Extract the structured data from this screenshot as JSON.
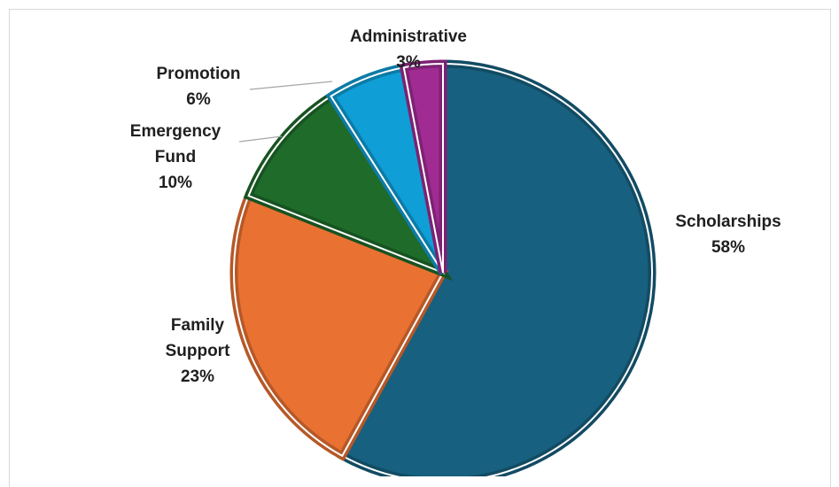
{
  "chart_data": {
    "type": "pie",
    "title": "",
    "slices": [
      {
        "name": "Scholarships",
        "label_lines": [
          "Scholarships"
        ],
        "value": 58,
        "percent_label": "58%",
        "color": "#17607f"
      },
      {
        "name": "Family Support",
        "label_lines": [
          "Family",
          "Support"
        ],
        "value": 23,
        "percent_label": "23%",
        "color": "#e97132"
      },
      {
        "name": "Emergency Fund",
        "label_lines": [
          "Emergency",
          "Fund"
        ],
        "value": 10,
        "percent_label": "10%",
        "color": "#1e6b2a"
      },
      {
        "name": "Promotion",
        "label_lines": [
          "Promotion"
        ],
        "value": 6,
        "percent_label": "6%",
        "color": "#0f9ed5"
      },
      {
        "name": "Administrative",
        "label_lines": [
          "Administrative"
        ],
        "value": 3,
        "percent_label": "3%",
        "color": "#a02b93"
      }
    ],
    "legend": "none",
    "data_labels": "outside, category name and percentage"
  }
}
